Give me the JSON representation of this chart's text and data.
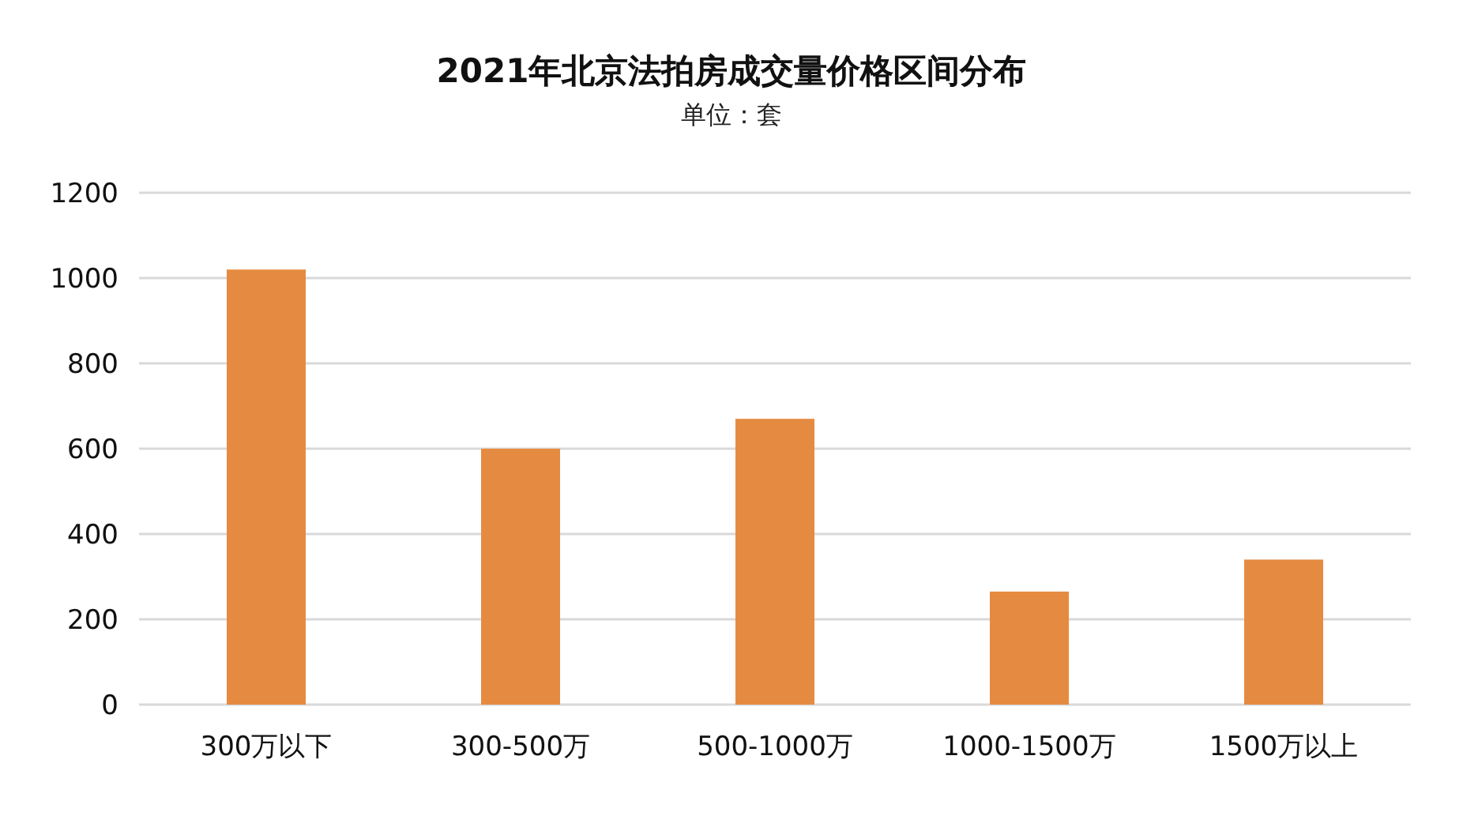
{
  "chart_data": {
    "type": "bar",
    "title": "2021年北京法拍房成交量价格区间分布",
    "subtitle": "单位：套",
    "categories": [
      "300万以下",
      "300-500万",
      "500-1000万",
      "1000-1500万",
      "1500万以上"
    ],
    "values": [
      1020,
      600,
      670,
      265,
      340
    ],
    "color": "#e58b41",
    "ylim": [
      0,
      1200
    ],
    "yticks": [
      0,
      200,
      400,
      600,
      800,
      1000,
      1200
    ],
    "grid": "y"
  }
}
